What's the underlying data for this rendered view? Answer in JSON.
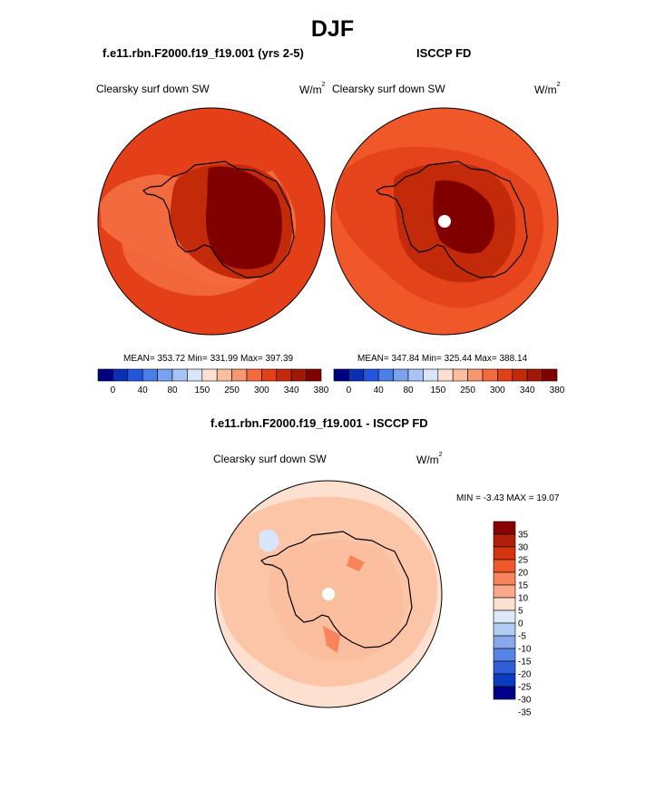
{
  "title": "DJF",
  "panels": [
    {
      "subtitle": "f.e11.rbn.F2000.f19_f19.001 (yrs 2-5)",
      "field_label": "Clearsky surf down SW",
      "units_base": "W/m",
      "units_exp": "2",
      "stats": "MEAN= 353.72  Min= 331.99  Max= 397.39"
    },
    {
      "subtitle": "ISCCP FD",
      "field_label": "Clearsky surf down SW",
      "units_base": "W/m",
      "units_exp": "2",
      "stats": "MEAN= 347.84  Min= 325.44  Max= 388.14"
    }
  ],
  "diff_panel": {
    "subtitle": "f.e11.rbn.F2000.f19_f19.001 - ISCCP FD",
    "field_label": "Clearsky surf down SW",
    "units_base": "W/m",
    "units_exp": "2",
    "stats": "MIN =  -3.43 MAX =  19.07"
  },
  "colors": {
    "abs_scale": [
      "#000080",
      "#0a2fb5",
      "#2255e0",
      "#4a7fe8",
      "#7aa3ef",
      "#a8c3f4",
      "#d8e6fb",
      "#fde0cf",
      "#fbbfa0",
      "#f89672",
      "#f26a3e",
      "#e3401a",
      "#c22a0a",
      "#a21807",
      "#800000"
    ],
    "diff_scale": [
      "#8b0000",
      "#b01f06",
      "#d4350f",
      "#f0582a",
      "#f7845a",
      "#fba988",
      "#fde0cf",
      "#dce8f8",
      "#b1cdf3",
      "#86a9ec",
      "#5884e4",
      "#2f5fd8",
      "#0a3cc0",
      "#00008b"
    ]
  },
  "chart_data": [
    {
      "type": "heatmap",
      "projection": "south-polar-stereographic",
      "title": "f.e11.rbn.F2000.f19_f19.001 (yrs 2-5)",
      "variable": "Clearsky surf down SW",
      "units": "W/m2",
      "mean": 353.72,
      "min": 331.99,
      "max": 397.39,
      "colorbar_tick_labels": [
        "0",
        "40",
        "80",
        "150",
        "250",
        "300",
        "340",
        "380"
      ],
      "levels": [
        0,
        20,
        40,
        60,
        80,
        100,
        150,
        200,
        250,
        280,
        300,
        320,
        340,
        360,
        380
      ]
    },
    {
      "type": "heatmap",
      "projection": "south-polar-stereographic",
      "title": "ISCCP FD",
      "variable": "Clearsky surf down SW",
      "units": "W/m2",
      "mean": 347.84,
      "min": 325.44,
      "max": 388.14,
      "colorbar_tick_labels": [
        "0",
        "40",
        "80",
        "150",
        "250",
        "300",
        "340",
        "380"
      ],
      "levels": [
        0,
        20,
        40,
        60,
        80,
        100,
        150,
        200,
        250,
        280,
        300,
        320,
        340,
        360,
        380
      ]
    },
    {
      "type": "heatmap",
      "projection": "south-polar-stereographic",
      "title": "f.e11.rbn.F2000.f19_f19.001 - ISCCP FD",
      "variable": "Clearsky surf down SW",
      "units": "W/m2",
      "min": -3.43,
      "max": 19.07,
      "colorbar_tick_labels": [
        "35",
        "30",
        "25",
        "20",
        "15",
        "10",
        "5",
        "0",
        "-5",
        "-10",
        "-15",
        "-20",
        "-25",
        "-30",
        "-35"
      ]
    }
  ]
}
